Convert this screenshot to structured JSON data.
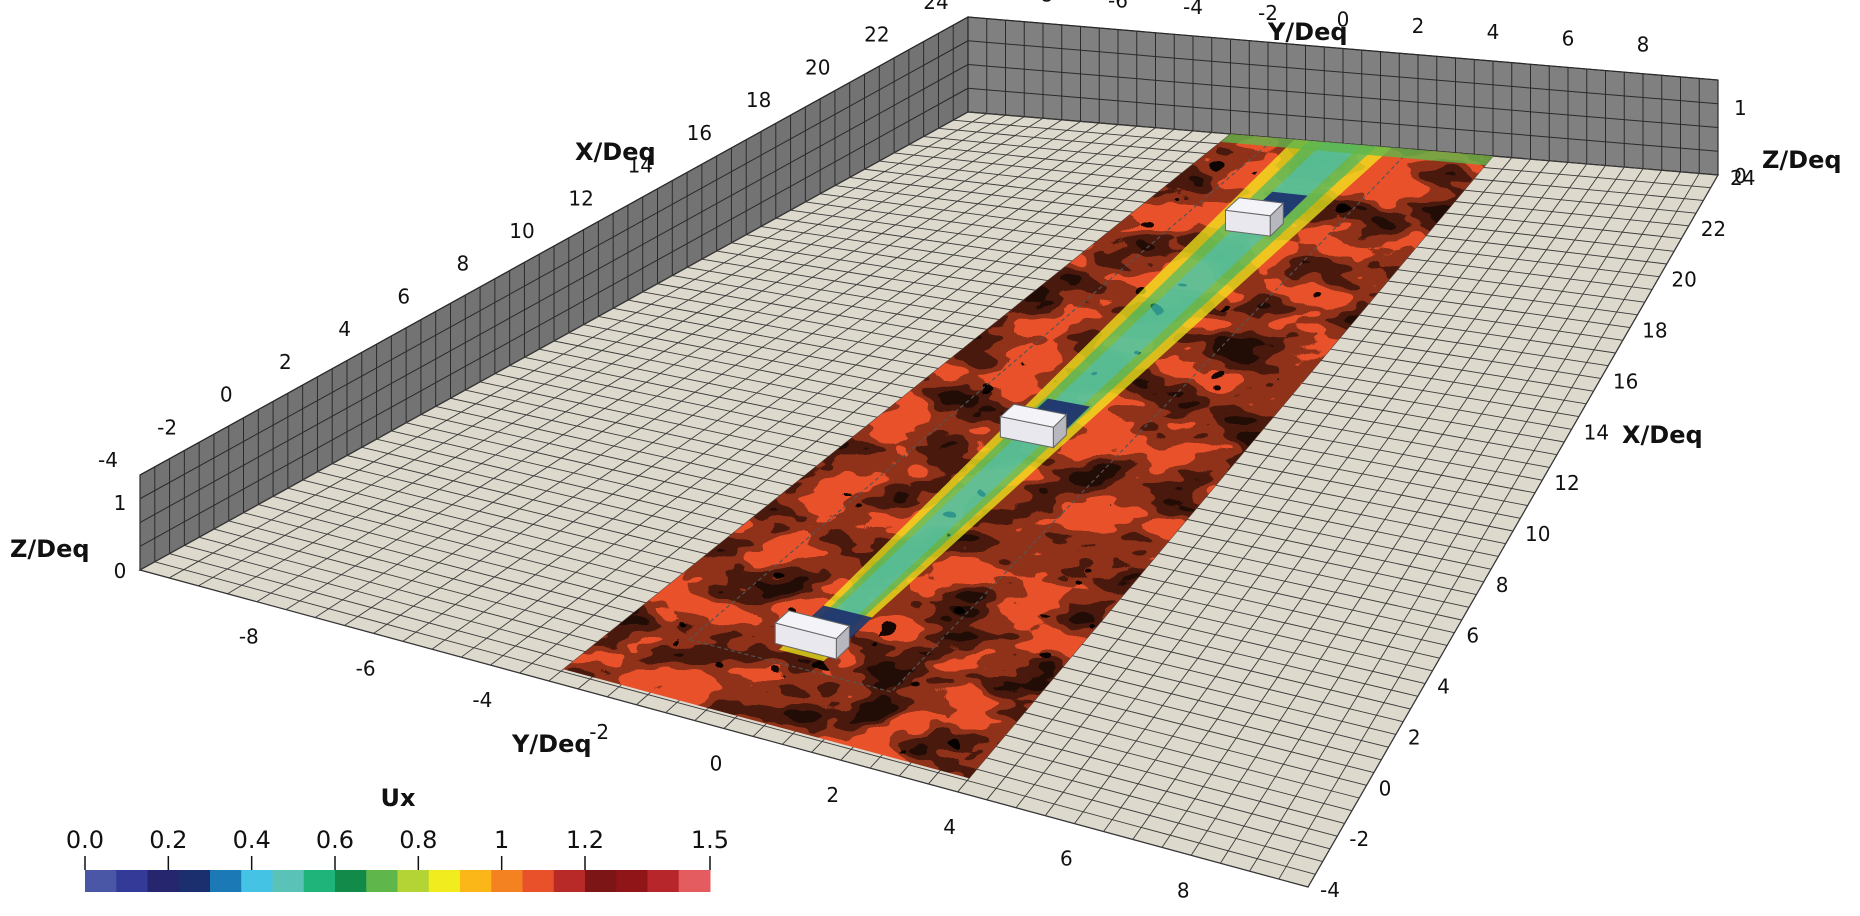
{
  "figure": {
    "axes": {
      "x": {
        "label": "X/Deq",
        "ticks": [
          "-4",
          "-2",
          "0",
          "2",
          "4",
          "6",
          "8",
          "10",
          "12",
          "14",
          "16",
          "18",
          "20",
          "22",
          "24"
        ],
        "range": [
          -4,
          24
        ]
      },
      "y": {
        "label": "Y/Deq",
        "ticks": [
          "-8",
          "-6",
          "-4",
          "-2",
          "0",
          "2",
          "4",
          "6",
          "8"
        ],
        "range": [
          -10,
          10
        ]
      },
      "z": {
        "label": "Z/Deq",
        "ticks": [
          "0",
          "1"
        ],
        "range": [
          0,
          1.4
        ]
      }
    },
    "colorbar": {
      "title": "Ux",
      "ticks": [
        "0.0",
        "0.2",
        "0.4",
        "0.6",
        "0.8",
        "1",
        "1.2",
        "1.5"
      ],
      "tick_values": [
        0,
        0.2,
        0.4,
        0.6,
        0.8,
        1.0,
        1.2,
        1.5
      ],
      "range": [
        0,
        1.5
      ],
      "colors": [
        "#4a56a6",
        "#343a98",
        "#25266d",
        "#1b2e6e",
        "#1b7ab6",
        "#45c3e5",
        "#5ac2b6",
        "#1eb47a",
        "#118a4a",
        "#5fb64a",
        "#b3d434",
        "#f1ec1d",
        "#fbb618",
        "#f58220",
        "#e9512b",
        "#b82a27",
        "#7c1516",
        "#8f1518",
        "#b7262b",
        "#e45c5f"
      ]
    },
    "turbines": [
      {
        "x": 0,
        "y": 0
      },
      {
        "x": 10,
        "y": 0
      },
      {
        "x": 20,
        "y": 0
      }
    ]
  }
}
